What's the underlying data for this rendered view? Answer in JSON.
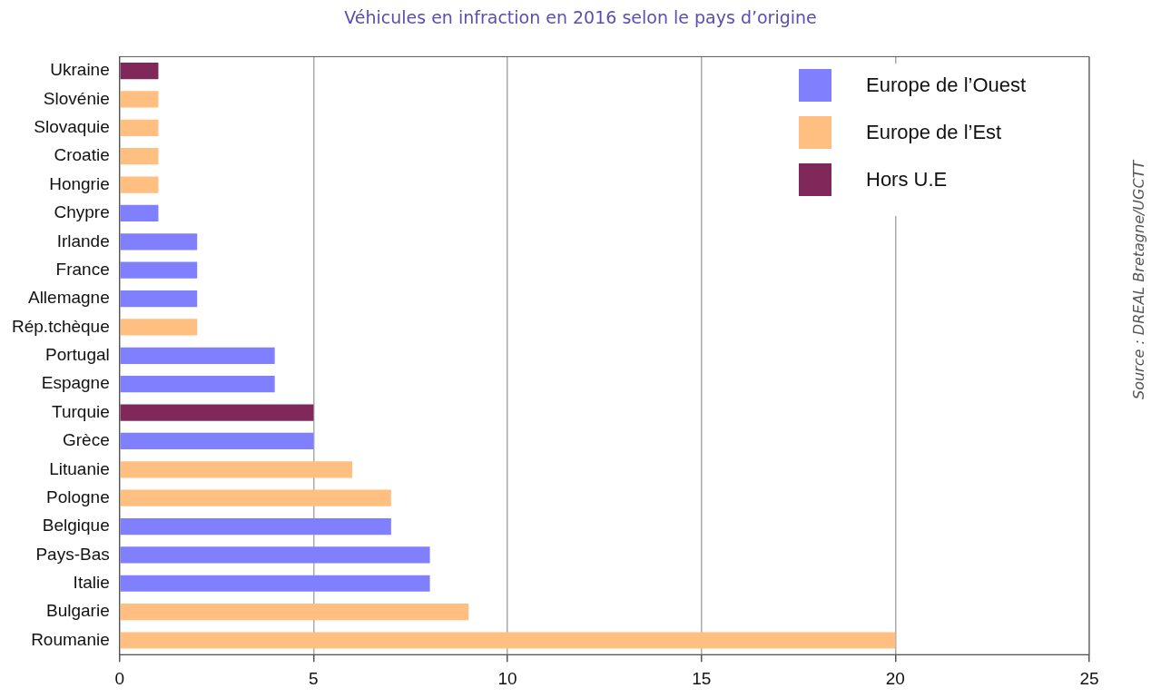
{
  "chart_data": {
    "type": "bar",
    "orientation": "horizontal",
    "stacked": true,
    "title": "Véhicules en infraction en 2016 selon le pays d’origine",
    "categories": [
      "Ukraine",
      "Slovénie",
      "Slovaquie",
      "Croatie",
      "Hongrie",
      "Chypre",
      "Irlande",
      "France",
      "Allemagne",
      "Rép.tchèque",
      "Portugal",
      "Espagne",
      "Turquie",
      "Grèce",
      "Lituanie",
      "Pologne",
      "Belgique",
      "Pays-Bas",
      "Italie",
      "Bulgarie",
      "Roumanie"
    ],
    "series": [
      {
        "name": "Europe de l’Ouest",
        "color": "#8080ff",
        "values": [
          null,
          null,
          null,
          null,
          null,
          1,
          2,
          2,
          2,
          null,
          4,
          4,
          null,
          5,
          null,
          null,
          7,
          8,
          8,
          null,
          null
        ]
      },
      {
        "name": "Europe de l’Est",
        "color": "#ffbf80",
        "values": [
          null,
          1,
          1,
          1,
          1,
          null,
          null,
          null,
          null,
          2,
          null,
          null,
          null,
          null,
          6,
          7,
          null,
          null,
          null,
          9,
          20
        ]
      },
      {
        "name": "Hors U.E",
        "color": "#80285a",
        "values": [
          1,
          null,
          null,
          null,
          null,
          null,
          null,
          null,
          null,
          null,
          null,
          null,
          5,
          null,
          null,
          null,
          null,
          null,
          null,
          null,
          null
        ]
      }
    ],
    "xlim": [
      0,
      25
    ],
    "xticks": [
      0,
      5,
      10,
      15,
      20,
      25
    ],
    "grid": "x",
    "legend": "top right",
    "annotations": [
      "Source : DREAL Bretagne/UGCTT"
    ]
  }
}
